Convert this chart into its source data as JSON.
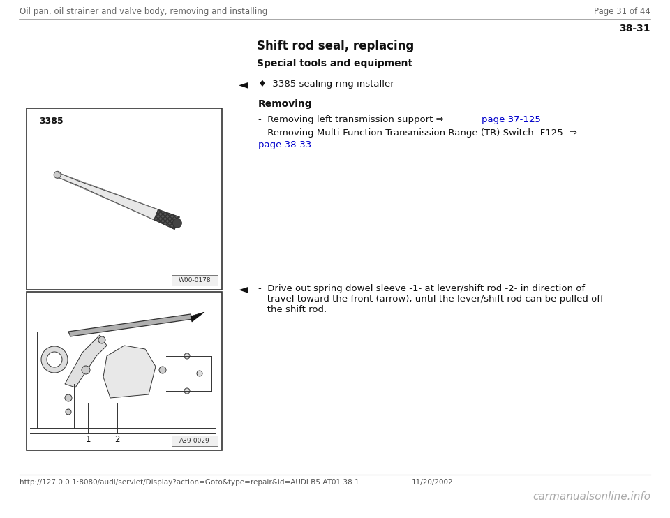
{
  "bg_color": "#ffffff",
  "header_left": "Oil pan, oil strainer and valve body, removing and installing",
  "header_right": "Page 31 of 44",
  "header_fontsize": 8.5,
  "header_color": "#666666",
  "separator_color": "#999999",
  "page_number": "38-31",
  "page_number_fontsize": 10,
  "title": "Shift rod seal, replacing",
  "title_fontsize": 12,
  "subtitle": "Special tools and equipment",
  "subtitle_fontsize": 10,
  "tool_bullet": "♦  3385 sealing ring installer",
  "tool_fontsize": 9.5,
  "section_removing": "Removing",
  "section_fontsize": 10,
  "bullet1_text": "-  Removing left transmission support ⇒ ",
  "bullet1_link": "page 37-125",
  "bullet1_post": " .",
  "bullet2_text": "-  Removing Multi-Function Transmission Range (TR) Switch -F125- ⇒",
  "bullet2_link": "page 38-33",
  "bullet2_post": " .",
  "bullet_fontsize": 9.5,
  "link_color": "#0000cc",
  "img1_label": "W00-0178",
  "img1_tool_label": "3385",
  "img2_label": "A39-0029",
  "img2_num1": "1",
  "img2_num2": "2",
  "section2_line1": "-  Drive out spring dowel sleeve -1- at lever/shift rod -2- in direction of",
  "section2_line2": "   travel toward the front (arrow), until the lever/shift rod can be pulled off",
  "section2_line3": "   the shift rod.",
  "footer_url": "http://127.0.0.1:8080/audi/servlet/Display?action=Goto&type=repair&id=AUDI.B5.AT01.38.1",
  "footer_date": "11/20/2002",
  "footer_brand": "carmanualsonline.info",
  "footer_url_fontsize": 7.5,
  "footer_brand_fontsize": 11
}
